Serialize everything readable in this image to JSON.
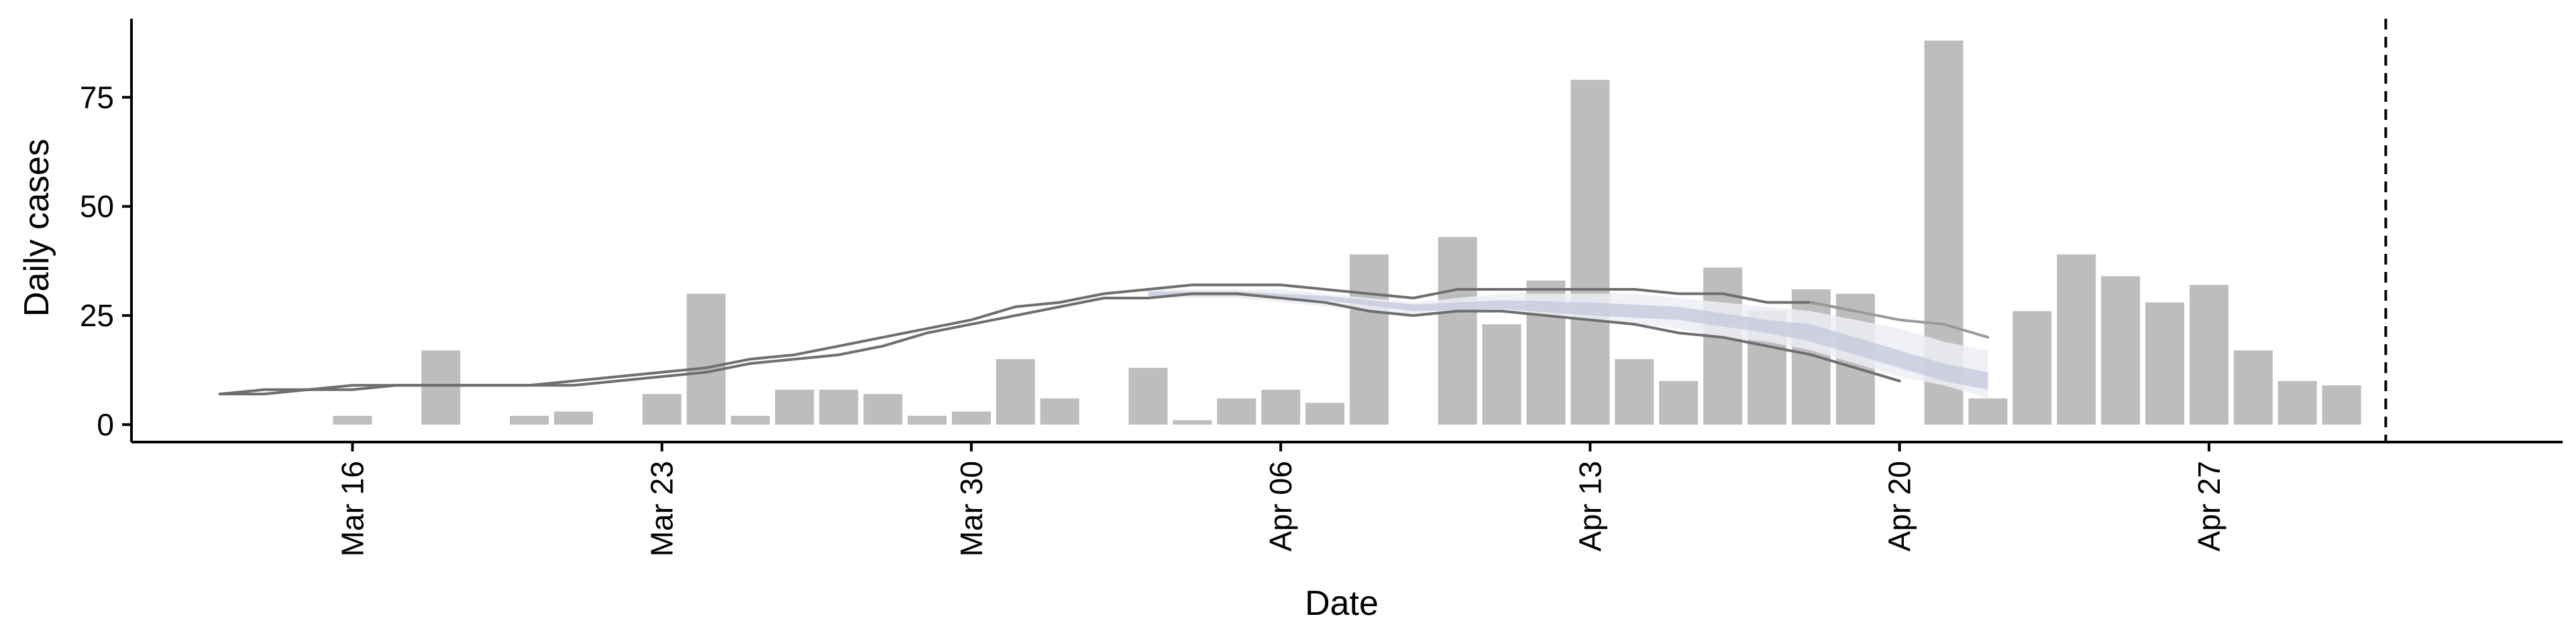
{
  "chart_data": {
    "type": "bar",
    "xlabel": "Date",
    "ylabel": "Daily cases",
    "xlim": [
      "2020-03-11",
      "2020-05-05"
    ],
    "ylim": [
      -4,
      93
    ],
    "yticks": [
      0,
      25,
      50,
      75
    ],
    "x_ticks": [
      {
        "date": "2020-03-16",
        "label": "Mar 16"
      },
      {
        "date": "2020-03-23",
        "label": "Mar 23"
      },
      {
        "date": "2020-03-30",
        "label": "Mar 30"
      },
      {
        "date": "2020-04-06",
        "label": "Apr 06"
      },
      {
        "date": "2020-04-13",
        "label": "Apr 13"
      },
      {
        "date": "2020-04-20",
        "label": "Apr 20"
      },
      {
        "date": "2020-04-27",
        "label": "Apr 27"
      }
    ],
    "grid": false,
    "vline_date": "2020-05-01",
    "colors": {
      "bars": "#bdbdbd",
      "lines": "#6e6e6e",
      "lines_light": "#9a9a9a",
      "band_outer": "#eceef5",
      "band_inner": "#c5cadd",
      "band_line": "#b9bfd6"
    },
    "bars": [
      {
        "date": "2020-03-16",
        "value": 2
      },
      {
        "date": "2020-03-18",
        "value": 17
      },
      {
        "date": "2020-03-20",
        "value": 2
      },
      {
        "date": "2020-03-21",
        "value": 3
      },
      {
        "date": "2020-03-23",
        "value": 7
      },
      {
        "date": "2020-03-24",
        "value": 30
      },
      {
        "date": "2020-03-25",
        "value": 2
      },
      {
        "date": "2020-03-26",
        "value": 8
      },
      {
        "date": "2020-03-27",
        "value": 8
      },
      {
        "date": "2020-03-28",
        "value": 7
      },
      {
        "date": "2020-03-29",
        "value": 2
      },
      {
        "date": "2020-03-30",
        "value": 3
      },
      {
        "date": "2020-03-31",
        "value": 15
      },
      {
        "date": "2020-04-01",
        "value": 6
      },
      {
        "date": "2020-04-03",
        "value": 13
      },
      {
        "date": "2020-04-04",
        "value": 1
      },
      {
        "date": "2020-04-05",
        "value": 6
      },
      {
        "date": "2020-04-06",
        "value": 8
      },
      {
        "date": "2020-04-07",
        "value": 5
      },
      {
        "date": "2020-04-08",
        "value": 39
      },
      {
        "date": "2020-04-10",
        "value": 43
      },
      {
        "date": "2020-04-11",
        "value": 23
      },
      {
        "date": "2020-04-12",
        "value": 33
      },
      {
        "date": "2020-04-13",
        "value": 79
      },
      {
        "date": "2020-04-14",
        "value": 15
      },
      {
        "date": "2020-04-15",
        "value": 10
      },
      {
        "date": "2020-04-16",
        "value": 36
      },
      {
        "date": "2020-04-17",
        "value": 26
      },
      {
        "date": "2020-04-18",
        "value": 31
      },
      {
        "date": "2020-04-19",
        "value": 30
      },
      {
        "date": "2020-04-21",
        "value": 88
      },
      {
        "date": "2020-04-22",
        "value": 6
      },
      {
        "date": "2020-04-23",
        "value": 26
      },
      {
        "date": "2020-04-24",
        "value": 39
      },
      {
        "date": "2020-04-25",
        "value": 34
      },
      {
        "date": "2020-04-26",
        "value": 28
      },
      {
        "date": "2020-04-27",
        "value": 32
      },
      {
        "date": "2020-04-28",
        "value": 17
      },
      {
        "date": "2020-04-29",
        "value": 10
      },
      {
        "date": "2020-04-30",
        "value": 9
      }
    ],
    "lines": [
      {
        "tone": "dark",
        "points": [
          [
            "2020-03-13",
            7
          ],
          [
            "2020-03-14",
            8
          ],
          [
            "2020-03-15",
            8
          ],
          [
            "2020-03-16",
            9
          ],
          [
            "2020-03-17",
            9
          ],
          [
            "2020-03-18",
            9
          ],
          [
            "2020-03-19",
            9
          ],
          [
            "2020-03-20",
            9
          ],
          [
            "2020-03-21",
            10
          ],
          [
            "2020-03-22",
            11
          ],
          [
            "2020-03-23",
            12
          ],
          [
            "2020-03-24",
            13
          ],
          [
            "2020-03-25",
            15
          ],
          [
            "2020-03-26",
            16
          ],
          [
            "2020-03-27",
            18
          ],
          [
            "2020-03-28",
            20
          ],
          [
            "2020-03-29",
            22
          ],
          [
            "2020-03-30",
            24
          ],
          [
            "2020-03-31",
            27
          ],
          [
            "2020-04-01",
            28
          ],
          [
            "2020-04-02",
            30
          ],
          [
            "2020-04-03",
            31
          ],
          [
            "2020-04-04",
            32
          ],
          [
            "2020-04-05",
            32
          ],
          [
            "2020-04-06",
            32
          ],
          [
            "2020-04-07",
            31
          ],
          [
            "2020-04-08",
            30
          ],
          [
            "2020-04-09",
            29
          ],
          [
            "2020-04-10",
            31
          ],
          [
            "2020-04-11",
            31
          ],
          [
            "2020-04-12",
            31
          ],
          [
            "2020-04-13",
            31
          ],
          [
            "2020-04-14",
            31
          ],
          [
            "2020-04-15",
            30
          ],
          [
            "2020-04-16",
            30
          ],
          [
            "2020-04-17",
            28
          ],
          [
            "2020-04-18",
            28
          ],
          [
            "2020-04-19",
            26
          ]
        ]
      },
      {
        "tone": "dark",
        "points": [
          [
            "2020-03-13",
            7
          ],
          [
            "2020-03-14",
            7
          ],
          [
            "2020-03-15",
            8
          ],
          [
            "2020-03-16",
            8
          ],
          [
            "2020-03-17",
            9
          ],
          [
            "2020-03-18",
            9
          ],
          [
            "2020-03-19",
            9
          ],
          [
            "2020-03-20",
            9
          ],
          [
            "2020-03-21",
            9
          ],
          [
            "2020-03-22",
            10
          ],
          [
            "2020-03-23",
            11
          ],
          [
            "2020-03-24",
            12
          ],
          [
            "2020-03-25",
            14
          ],
          [
            "2020-03-26",
            15
          ],
          [
            "2020-03-27",
            16
          ],
          [
            "2020-03-28",
            18
          ],
          [
            "2020-03-29",
            21
          ],
          [
            "2020-03-30",
            23
          ],
          [
            "2020-03-31",
            25
          ],
          [
            "2020-04-01",
            27
          ],
          [
            "2020-04-02",
            29
          ],
          [
            "2020-04-03",
            29
          ],
          [
            "2020-04-04",
            30
          ],
          [
            "2020-04-05",
            30
          ],
          [
            "2020-04-06",
            29
          ],
          [
            "2020-04-07",
            28
          ],
          [
            "2020-04-08",
            26
          ],
          [
            "2020-04-09",
            25
          ],
          [
            "2020-04-10",
            26
          ],
          [
            "2020-04-11",
            26
          ],
          [
            "2020-04-12",
            25
          ],
          [
            "2020-04-13",
            24
          ],
          [
            "2020-04-14",
            23
          ],
          [
            "2020-04-15",
            21
          ],
          [
            "2020-04-16",
            20
          ],
          [
            "2020-04-17",
            18
          ],
          [
            "2020-04-18",
            16
          ],
          [
            "2020-04-19",
            13
          ],
          [
            "2020-04-20",
            10
          ]
        ]
      },
      {
        "tone": "light",
        "points": [
          [
            "2020-04-18",
            28
          ],
          [
            "2020-04-19",
            26
          ],
          [
            "2020-04-20",
            24
          ],
          [
            "2020-04-21",
            23
          ],
          [
            "2020-04-22",
            20
          ]
        ]
      }
    ],
    "band": {
      "upper": [
        [
          "2020-04-03",
          31
        ],
        [
          "2020-04-04",
          31
        ],
        [
          "2020-04-05",
          31
        ],
        [
          "2020-04-06",
          31
        ],
        [
          "2020-04-07",
          30
        ],
        [
          "2020-04-08",
          29
        ],
        [
          "2020-04-09",
          28
        ],
        [
          "2020-04-10",
          29
        ],
        [
          "2020-04-11",
          30
        ],
        [
          "2020-04-12",
          30
        ],
        [
          "2020-04-13",
          30
        ],
        [
          "2020-04-14",
          30
        ],
        [
          "2020-04-15",
          29
        ],
        [
          "2020-04-16",
          28
        ],
        [
          "2020-04-17",
          27
        ],
        [
          "2020-04-18",
          26
        ],
        [
          "2020-04-19",
          24
        ],
        [
          "2020-04-20",
          22
        ],
        [
          "2020-04-21",
          19
        ],
        [
          "2020-04-22",
          17
        ]
      ],
      "lower": [
        [
          "2020-04-03",
          29
        ],
        [
          "2020-04-04",
          29
        ],
        [
          "2020-04-05",
          29
        ],
        [
          "2020-04-06",
          28
        ],
        [
          "2020-04-07",
          27
        ],
        [
          "2020-04-08",
          26
        ],
        [
          "2020-04-09",
          25
        ],
        [
          "2020-04-10",
          26
        ],
        [
          "2020-04-11",
          26
        ],
        [
          "2020-04-12",
          25
        ],
        [
          "2020-04-13",
          24
        ],
        [
          "2020-04-14",
          23
        ],
        [
          "2020-04-15",
          22
        ],
        [
          "2020-04-16",
          20
        ],
        [
          "2020-04-17",
          19
        ],
        [
          "2020-04-18",
          17
        ],
        [
          "2020-04-19",
          14
        ],
        [
          "2020-04-20",
          11
        ],
        [
          "2020-04-21",
          9
        ],
        [
          "2020-04-22",
          6
        ]
      ],
      "inner_upper": [
        [
          "2020-04-03",
          30.5
        ],
        [
          "2020-04-05",
          30.5
        ],
        [
          "2020-04-07",
          29.5
        ],
        [
          "2020-04-09",
          27.5
        ],
        [
          "2020-04-11",
          28.5
        ],
        [
          "2020-04-13",
          28
        ],
        [
          "2020-04-15",
          27
        ],
        [
          "2020-04-17",
          24
        ],
        [
          "2020-04-18",
          23
        ],
        [
          "2020-04-19",
          20
        ],
        [
          "2020-04-20",
          17
        ],
        [
          "2020-04-21",
          14
        ],
        [
          "2020-04-22",
          12
        ]
      ],
      "inner_lower": [
        [
          "2020-04-03",
          29.5
        ],
        [
          "2020-04-05",
          29.5
        ],
        [
          "2020-04-07",
          28.5
        ],
        [
          "2020-04-09",
          26
        ],
        [
          "2020-04-11",
          26.5
        ],
        [
          "2020-04-13",
          25
        ],
        [
          "2020-04-15",
          24
        ],
        [
          "2020-04-17",
          21
        ],
        [
          "2020-04-18",
          19
        ],
        [
          "2020-04-19",
          16
        ],
        [
          "2020-04-20",
          13
        ],
        [
          "2020-04-21",
          10
        ],
        [
          "2020-04-22",
          8
        ]
      ]
    }
  }
}
